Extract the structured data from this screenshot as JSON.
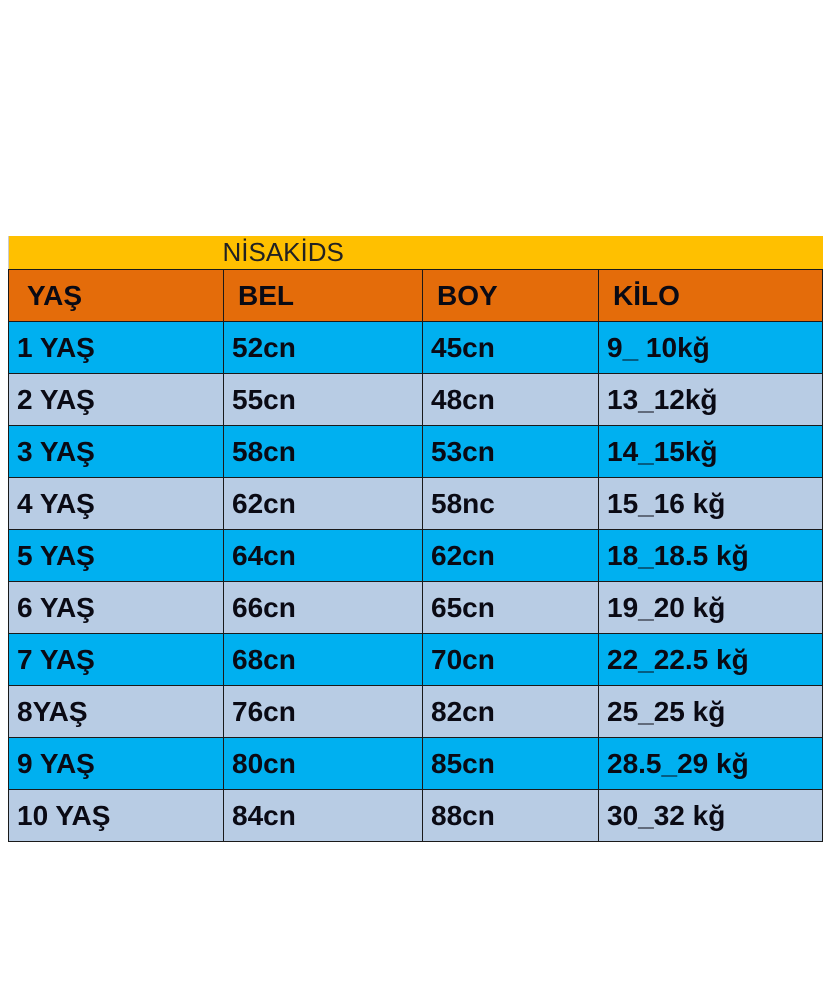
{
  "title": "NİSAKİDS",
  "colors": {
    "title_bg": "#FFC000",
    "header_bg": "#E46C0A",
    "row_blue": "#00B0F0",
    "row_light": "#B8CCE4"
  },
  "headers": [
    "YAŞ",
    "BEL",
    "BOY",
    "KİLO"
  ],
  "rows": [
    [
      "1 YAŞ",
      "52cn",
      "45cn",
      "9_ 10kğ"
    ],
    [
      "2 YAŞ",
      "55cn",
      "48cn",
      "13_12kğ"
    ],
    [
      "3 YAŞ",
      "58cn",
      "53cn",
      "14_15kğ"
    ],
    [
      "4 YAŞ",
      "62cn",
      "58nc",
      "15_16 kğ"
    ],
    [
      "5 YAŞ",
      "64cn",
      "62cn",
      "18_18.5 kğ"
    ],
    [
      "6 YAŞ",
      "66cn",
      "65cn",
      "19_20 kğ"
    ],
    [
      "7 YAŞ",
      "68cn",
      "70cn",
      "22_22.5 kğ"
    ],
    [
      "8YAŞ",
      "76cn",
      "82cn",
      "25_25 kğ"
    ],
    [
      "9 YAŞ",
      "80cn",
      "85cn",
      "28.5_29 kğ"
    ],
    [
      "10 YAŞ",
      "84cn",
      "88cn",
      "30_32 kğ"
    ]
  ]
}
